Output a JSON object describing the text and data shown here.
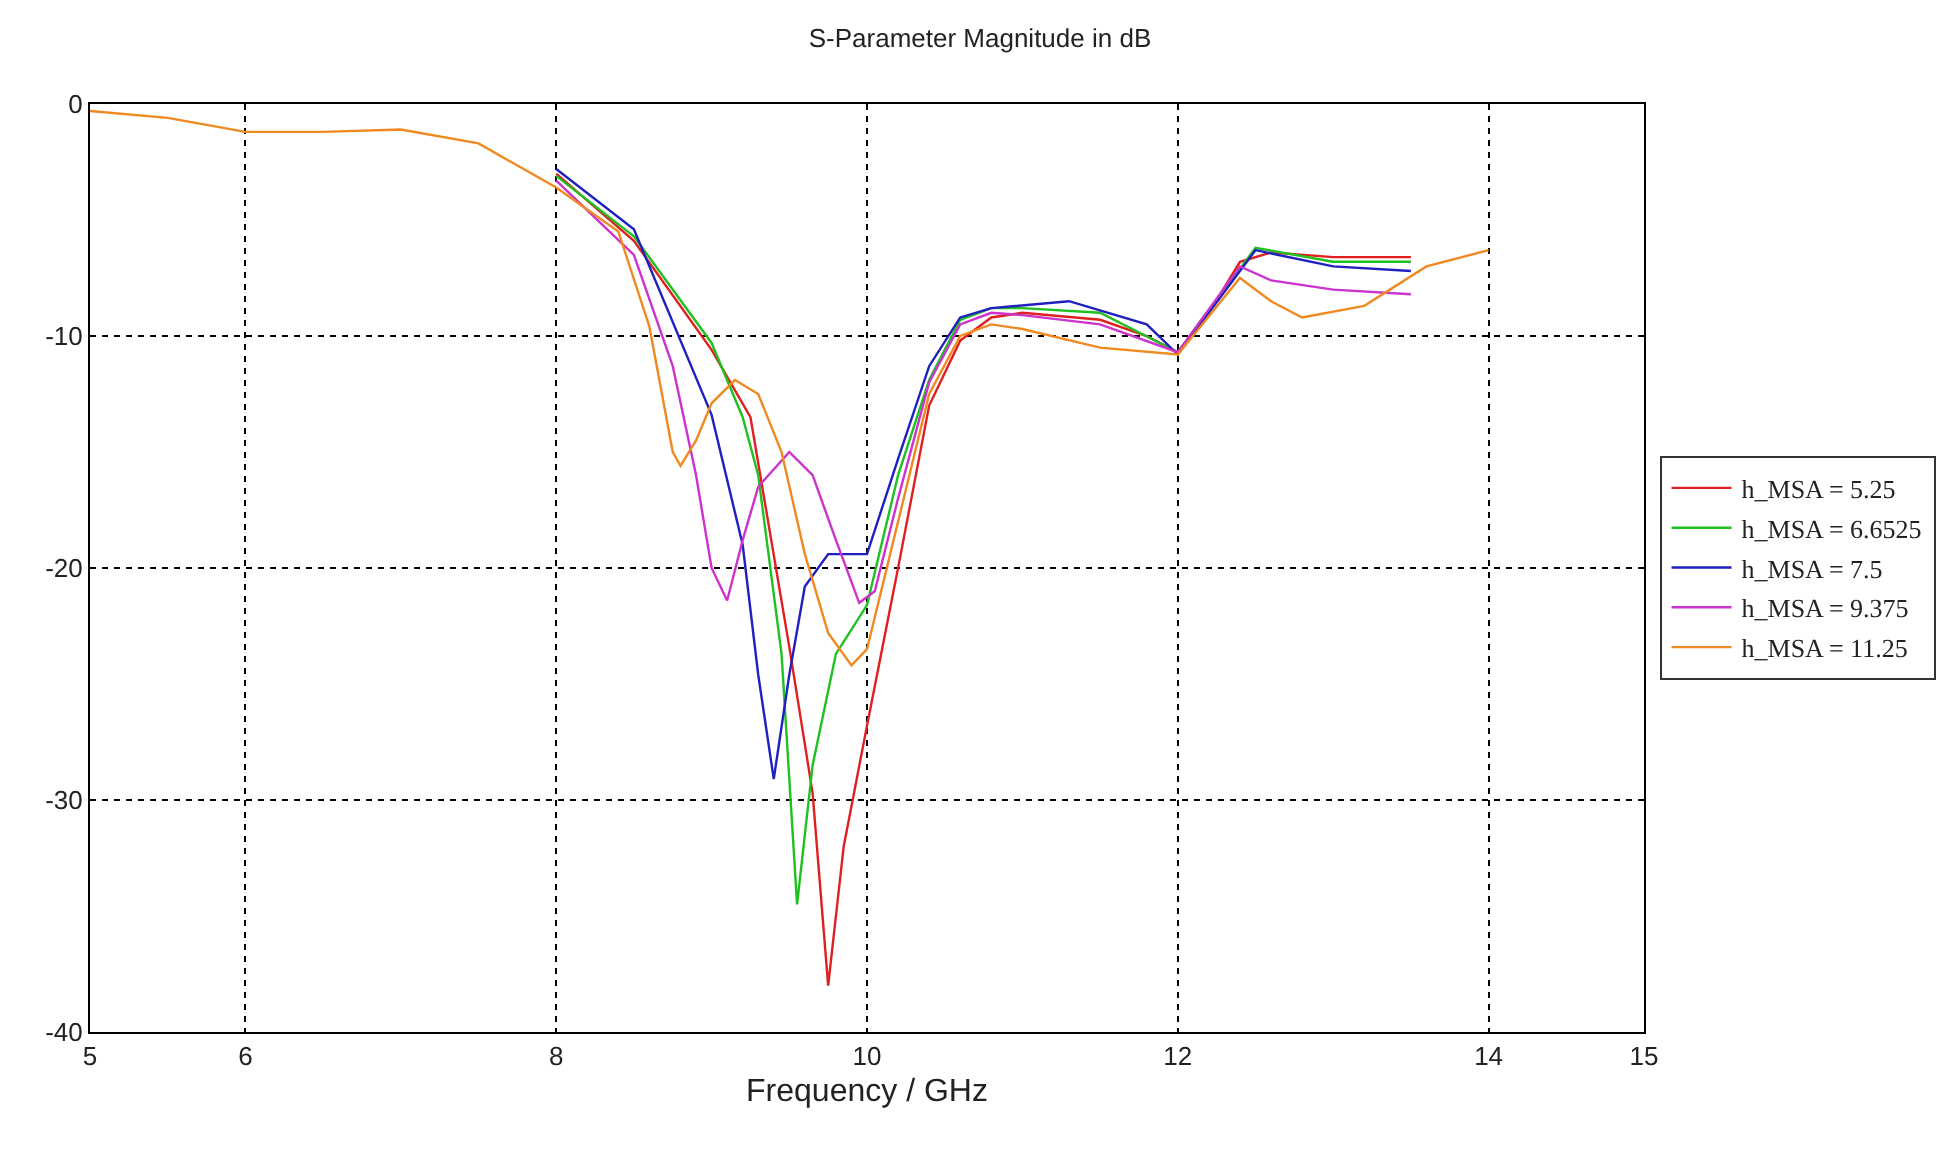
{
  "chart_data": {
    "type": "line",
    "title": "S-Parameter Magnitude in dB",
    "xlabel": "Frequency / GHz",
    "xlim": [
      5,
      15
    ],
    "xticks": [
      5,
      6,
      8,
      10,
      12,
      14,
      15
    ],
    "ylim": [
      -40,
      0
    ],
    "yticks": [
      0,
      -10,
      -20,
      -30,
      -40
    ],
    "grid": true,
    "line_style": "solid",
    "marker": "none",
    "legend": "right",
    "series": [
      {
        "name": "h_MSA = 5.25",
        "color": "#e02020",
        "x": [
          8,
          8.5,
          9,
          9.25,
          9.5,
          9.65,
          9.75,
          9.85,
          10,
          10.2,
          10.4,
          10.6,
          10.8,
          11,
          11.5,
          11.8,
          12,
          12.2,
          12.4,
          12.6,
          13,
          13.5
        ],
        "values": [
          -3,
          -5.9,
          -10.6,
          -13.5,
          -23.4,
          -29.7,
          -38,
          -32,
          -26.8,
          -20,
          -13,
          -10.2,
          -9.2,
          -9,
          -9.3,
          -10,
          -10.7,
          -9,
          -6.8,
          -6.4,
          -6.6,
          -6.6
        ]
      },
      {
        "name": "h_MSA = 6.6525",
        "color": "#20c020",
        "x": [
          8,
          8.5,
          9,
          9.2,
          9.3,
          9.45,
          9.55,
          9.65,
          9.8,
          10,
          10.2,
          10.4,
          10.6,
          10.8,
          11,
          11.5,
          12,
          12.5,
          13,
          13.5
        ],
        "values": [
          -3.1,
          -5.7,
          -10.3,
          -13.5,
          -16,
          -23.7,
          -34.5,
          -28.5,
          -23.7,
          -21.6,
          -16,
          -11.9,
          -9.3,
          -8.8,
          -8.8,
          -9,
          -10.7,
          -6.2,
          -6.8,
          -6.8
        ]
      },
      {
        "name": "h_MSA = 7.5",
        "color": "#2020c0",
        "x": [
          8,
          8.5,
          9,
          9.2,
          9.3,
          9.4,
          9.5,
          9.6,
          9.75,
          10,
          10.2,
          10.4,
          10.6,
          10.8,
          11.3,
          11.8,
          12,
          12.5,
          13,
          13.5
        ],
        "values": [
          -2.8,
          -5.4,
          -13.4,
          -19,
          -24.6,
          -29.1,
          -24.6,
          -20.8,
          -19.4,
          -19.4,
          -15.3,
          -11.3,
          -9.2,
          -8.8,
          -8.5,
          -9.5,
          -10.8,
          -6.3,
          -7,
          -7.2
        ]
      },
      {
        "name": "h_MSA = 9.375",
        "color": "#cc33cc",
        "x": [
          8,
          8.5,
          8.75,
          8.9,
          9,
          9.1,
          9.2,
          9.3,
          9.5,
          9.65,
          9.8,
          9.95,
          10.05,
          10.2,
          10.4,
          10.6,
          10.8,
          11,
          11.5,
          12,
          12.4,
          12.6,
          13,
          13.5
        ],
        "values": [
          -3.3,
          -6.5,
          -11.3,
          -16,
          -20,
          -21.4,
          -18.8,
          -16.5,
          -15,
          -16,
          -18.8,
          -21.5,
          -21,
          -17,
          -12,
          -9.5,
          -9,
          -9.1,
          -9.5,
          -10.7,
          -7,
          -7.6,
          -8,
          -8.2
        ]
      },
      {
        "name": "h_MSA = 11.25",
        "color": "#f08a20",
        "x": [
          5,
          5.5,
          6,
          6.5,
          7,
          7.5,
          8,
          8.4,
          8.6,
          8.75,
          8.8,
          8.9,
          9,
          9.15,
          9.3,
          9.45,
          9.6,
          9.75,
          9.9,
          10,
          10.2,
          10.4,
          10.6,
          10.8,
          11,
          11.5,
          12,
          12.4,
          12.6,
          12.8,
          13.2,
          13.6,
          14
        ],
        "values": [
          -0.3,
          -0.6,
          -1.2,
          -1.2,
          -1.1,
          -1.7,
          -3.6,
          -5.5,
          -9.6,
          -15,
          -15.6,
          -14.5,
          -12.9,
          -11.9,
          -12.5,
          -15,
          -19.4,
          -22.8,
          -24.2,
          -23.5,
          -18,
          -12.5,
          -10,
          -9.5,
          -9.7,
          -10.5,
          -10.8,
          -7.5,
          -8.5,
          -9.2,
          -8.7,
          -7,
          -6.3
        ]
      }
    ]
  }
}
